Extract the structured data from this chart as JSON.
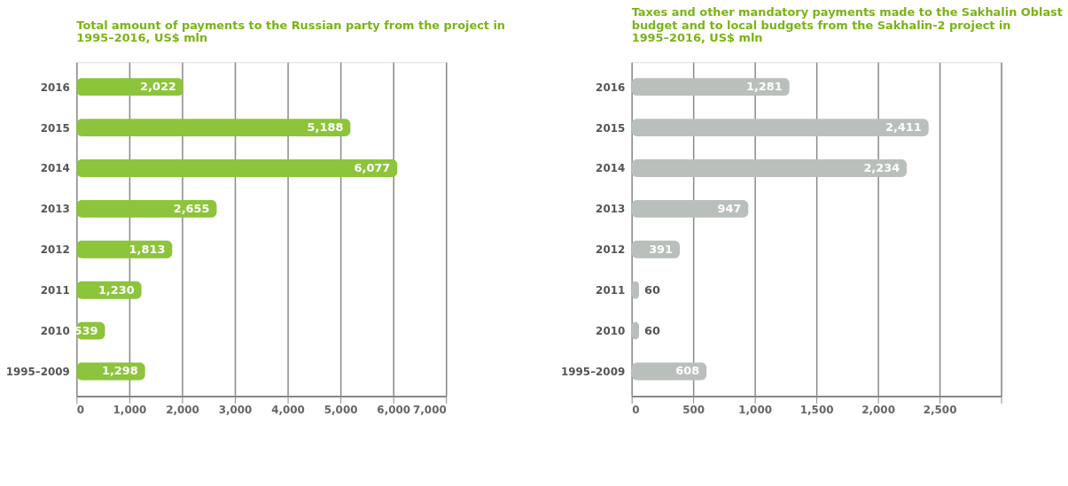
{
  "chart_data": [
    {
      "type": "bar",
      "orientation": "horizontal",
      "title": "Total amount of payments to the Russian party from the project in 1995–2016, US$ mln",
      "categories": [
        "2016",
        "2015",
        "2014",
        "2013",
        "2012",
        "2011",
        "2010",
        "1995–2009"
      ],
      "values": [
        2022,
        5188,
        6077,
        2655,
        1813,
        1230,
        539,
        1298
      ],
      "color": "#8cc43c",
      "value_labels": [
        "2,022",
        "5,188",
        "6,077",
        "2,655",
        "1,813",
        "1,230",
        "539",
        "1,298"
      ],
      "xlim": [
        0,
        7000
      ],
      "xticks": [
        0,
        {
          "value": 1000,
          "label": "1,000"
        },
        {
          "value": 2000,
          "label": "2,000"
        },
        {
          "value": 3000,
          "label": "3,000"
        },
        {
          "value": 4000,
          "label": "4,000"
        },
        {
          "value": 5000,
          "label": "5,000"
        },
        {
          "value": 6000,
          "label": "6,000"
        },
        {
          "value": 7000,
          "label": "7,000"
        }
      ],
      "grid": "x"
    },
    {
      "type": "bar",
      "orientation": "horizontal",
      "title": "Taxes and other mandatory payments made to the Sakhalin Oblast budget and to local budgets from the Sakhalin-2 project in 1995–2016, US$ mln",
      "categories": [
        "2016",
        "2015",
        "2014",
        "2013",
        "2012",
        "2011",
        "2010",
        "1995–2009"
      ],
      "values": [
        1281,
        2411,
        2234,
        947,
        391,
        60,
        60,
        608
      ],
      "color": "#b9bfbb",
      "value_labels": [
        "1,281",
        "2,411",
        "2,234",
        "947",
        "391",
        "60",
        "60",
        "608"
      ],
      "xlim": [
        0,
        3000
      ],
      "xticks": [
        0,
        500,
        {
          "value": 1000,
          "label": "1,000"
        },
        {
          "value": 1500,
          "label": "1,500"
        },
        {
          "value": 2000,
          "label": "2,000"
        },
        {
          "value": 2500,
          "label": "2,500"
        },
        {
          "value": 3000,
          "label": null
        }
      ],
      "grid": "x"
    }
  ]
}
